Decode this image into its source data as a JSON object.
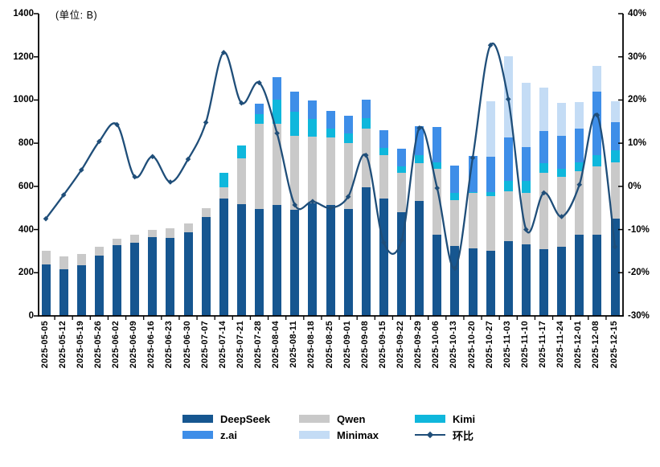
{
  "unit_label": "(单位: B)",
  "colors": {
    "deepseek": "#165690",
    "qwen": "#C9C9C9",
    "kimi": "#0FB7DC",
    "zai": "#3E8EE8",
    "minimax": "#C4DCF5",
    "line": "#1F4E79",
    "axis": "#000000",
    "background": "#FFFFFF"
  },
  "left_axis": {
    "tick_labels": [
      "0",
      "200",
      "400",
      "600",
      "800",
      "1000",
      "1200",
      "1400"
    ],
    "min": 0,
    "max": 1400
  },
  "right_axis": {
    "tick_labels": [
      "-30%",
      "-20%",
      "-10%",
      "0%",
      "10%",
      "20%",
      "30%",
      "40%"
    ],
    "min": -30,
    "max": 40
  },
  "legend": {
    "items": [
      {
        "label": "DeepSeek",
        "color": "#165690",
        "type": "swatch"
      },
      {
        "label": "Qwen",
        "color": "#C9C9C9",
        "type": "swatch"
      },
      {
        "label": "Kimi",
        "color": "#0FB7DC",
        "type": "swatch"
      },
      {
        "label": "z.ai",
        "color": "#3E8EE8",
        "type": "swatch"
      },
      {
        "label": "Minimax",
        "color": "#C4DCF5",
        "type": "swatch"
      },
      {
        "label": "环比",
        "color": "#1F4E79",
        "type": "line"
      }
    ]
  },
  "chart_data": {
    "type": "stacked-bar+line",
    "unit": "B",
    "grid": false,
    "legend_position": "bottom",
    "x_tick_label_rotation": 90,
    "left_ylim": [
      0,
      1400
    ],
    "right_ylim": [
      -30,
      40
    ],
    "stack_order_bottom_to_top": [
      "DeepSeek",
      "Qwen",
      "Kimi",
      "z.ai",
      "Minimax"
    ],
    "categories": [
      "2025-05-05",
      "2025-05-12",
      "2025-05-19",
      "2025-05-26",
      "2025-06-02",
      "2025-06-09",
      "2025-06-16",
      "2025-06-23",
      "2025-06-30",
      "2025-07-07",
      "2025-07-14",
      "2025-07-21",
      "2025-07-28",
      "2025-08-04",
      "2025-08-11",
      "2025-08-18",
      "2025-08-25",
      "2025-09-01",
      "2025-09-08",
      "2025-09-15",
      "2025-09-22",
      "2025-09-29",
      "2025-10-06",
      "2025-10-13",
      "2025-10-20",
      "2025-10-27",
      "2025-11-03",
      "2025-11-10",
      "2025-11-17",
      "2025-11-24",
      "2025-12-01",
      "2025-12-08",
      "2025-12-15"
    ],
    "series": [
      {
        "name": "DeepSeek",
        "color": "#165690",
        "axis": "left",
        "values": [
          240,
          215,
          234,
          280,
          328,
          340,
          365,
          362,
          386,
          458,
          545,
          518,
          496,
          512,
          490,
          522,
          512,
          496,
          597,
          542,
          480,
          532,
          377,
          325,
          312,
          303,
          348,
          330,
          308,
          321,
          377,
          377,
          450
        ]
      },
      {
        "name": "Qwen",
        "color": "#C9C9C9",
        "axis": "left",
        "values": [
          63,
          60,
          54,
          39,
          30,
          35,
          35,
          43,
          41,
          40,
          49,
          213,
          394,
          378,
          345,
          309,
          315,
          304,
          272,
          201,
          182,
          174,
          304,
          213,
          257,
          253,
          230,
          239,
          354,
          323,
          294,
          316,
          262
        ]
      },
      {
        "name": "Kimi",
        "color": "#0FB7DC",
        "axis": "left",
        "values": [
          0,
          0,
          0,
          0,
          0,
          0,
          0,
          0,
          0,
          0,
          68,
          59,
          45,
          112,
          112,
          81,
          39,
          44,
          46,
          37,
          31,
          40,
          31,
          31,
          6,
          19,
          47,
          56,
          44,
          37,
          41,
          50,
          56
        ]
      },
      {
        "name": "z.ai",
        "color": "#3E8EE8",
        "axis": "left",
        "values": [
          0,
          0,
          0,
          0,
          0,
          0,
          0,
          0,
          0,
          0,
          0,
          0,
          49,
          104,
          91,
          85,
          84,
          83,
          85,
          80,
          81,
          134,
          162,
          128,
          165,
          163,
          200,
          158,
          149,
          152,
          155,
          296,
          130
        ]
      },
      {
        "name": "Minimax",
        "color": "#C4DCF5",
        "axis": "left",
        "values": [
          0,
          0,
          0,
          0,
          0,
          0,
          0,
          0,
          0,
          0,
          0,
          0,
          0,
          0,
          0,
          0,
          0,
          0,
          0,
          0,
          0,
          0,
          0,
          0,
          0,
          256,
          377,
          295,
          201,
          155,
          123,
          120,
          96
        ]
      }
    ],
    "line_series": {
      "name": "环比",
      "color": "#1F4E79",
      "axis": "right",
      "unit": "%",
      "marker": "diamond",
      "values": [
        -7.5,
        -2,
        3.8,
        10.4,
        14.3,
        2.2,
        6.9,
        1,
        6.3,
        14.8,
        31,
        19.3,
        24,
        12.3,
        -4.3,
        -3.5,
        -5,
        -2.4,
        7.2,
        -13,
        -12.5,
        13.5,
        -0.4,
        -19,
        6.6,
        32.7,
        20.2,
        -10,
        -1.5,
        -7,
        0.4,
        16.5,
        -14
      ]
    }
  }
}
